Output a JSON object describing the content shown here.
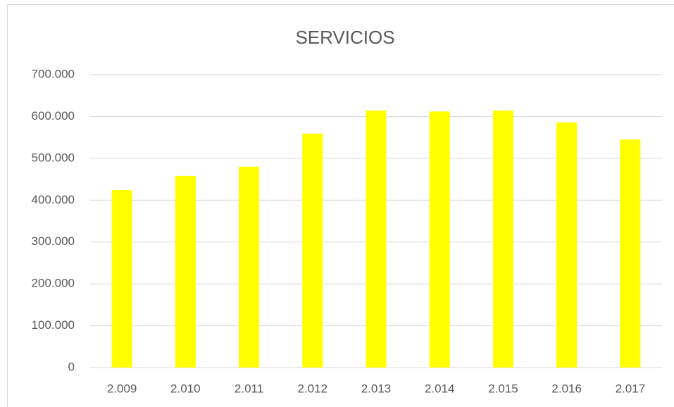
{
  "chart_data": {
    "type": "bar",
    "title": "SERVICIOS",
    "categories": [
      "2.009",
      "2.010",
      "2.011",
      "2.012",
      "2.013",
      "2.014",
      "2.015",
      "2.016",
      "2.017"
    ],
    "values": [
      424000,
      458000,
      480000,
      559000,
      614000,
      612000,
      614000,
      586000,
      545000
    ],
    "color": "#ffff00",
    "ylim": [
      0,
      700000
    ],
    "yticks": [
      0,
      {
        "value": 100000,
        "label": "100.000"
      },
      {
        "value": 200000,
        "label": "200.000"
      },
      {
        "value": 300000,
        "label": "300.000"
      },
      {
        "value": 400000,
        "label": "400.000"
      },
      {
        "value": 500000,
        "label": "500.000"
      },
      {
        "value": 600000,
        "label": "600.000"
      },
      {
        "value": 700000,
        "label": "700.000"
      }
    ],
    "grid": true
  }
}
